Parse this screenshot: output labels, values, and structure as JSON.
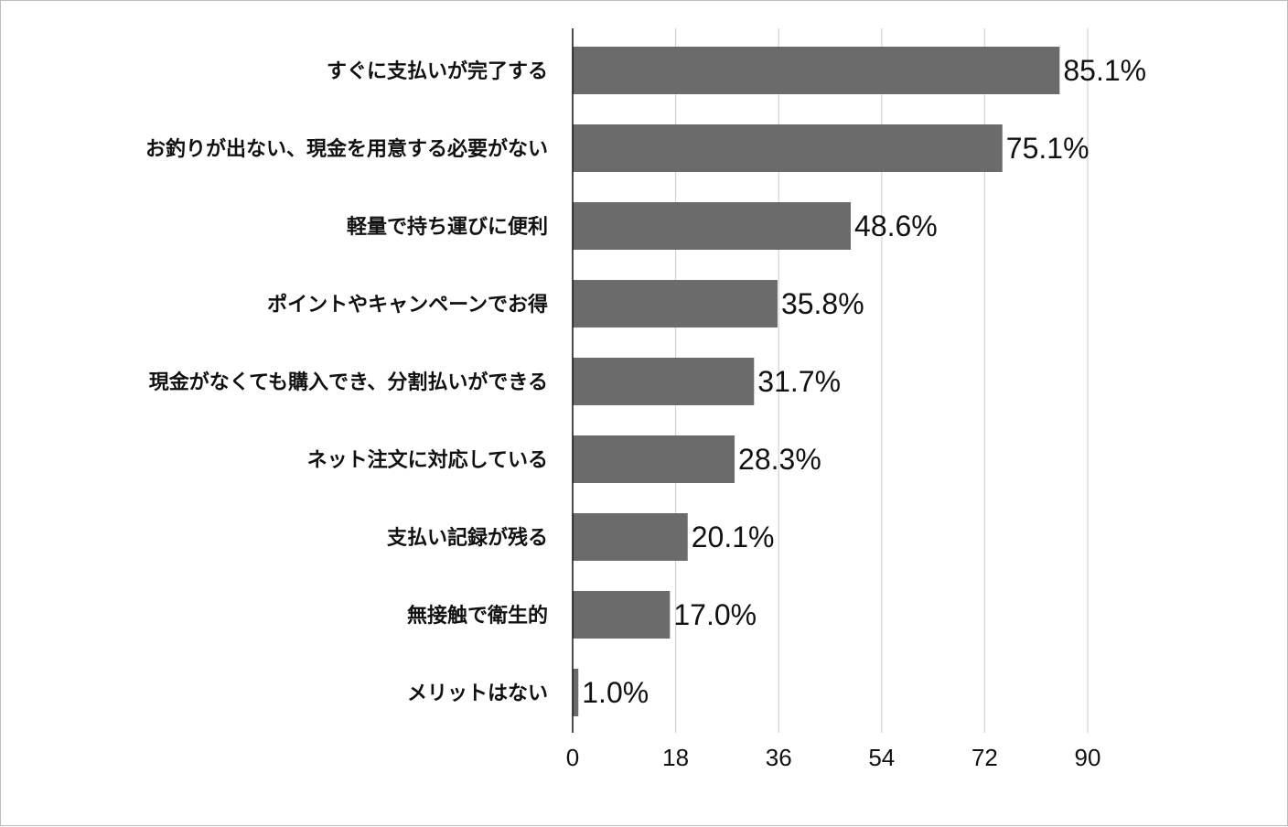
{
  "chart_data": {
    "type": "bar",
    "orientation": "horizontal",
    "categories": [
      "すぐに支払いが完了する",
      "お釣りが出ない、現金を用意する必要がない",
      "軽量で持ち運びに便利",
      "ポイントやキャンペーンでお得",
      "現金がなくても購入でき、分割払いができる",
      "ネット注文に対応している",
      "支払い記録が残る",
      "無接触で衛生的",
      "メリットはない"
    ],
    "values": [
      85.1,
      75.1,
      48.6,
      35.8,
      31.7,
      28.3,
      20.1,
      17.0,
      1.0
    ],
    "data_labels": [
      "85.1%",
      "75.1%",
      "48.6%",
      "35.8%",
      "31.7%",
      "28.3%",
      "20.1%",
      "17.0%",
      "1.0%"
    ],
    "xticks": [
      "0",
      "18",
      "36",
      "54",
      "72",
      "90"
    ],
    "xlim": [
      0,
      90
    ],
    "grid": "vertical",
    "bar_color": "#6b6b6b",
    "title": "",
    "xlabel": "",
    "ylabel": ""
  }
}
